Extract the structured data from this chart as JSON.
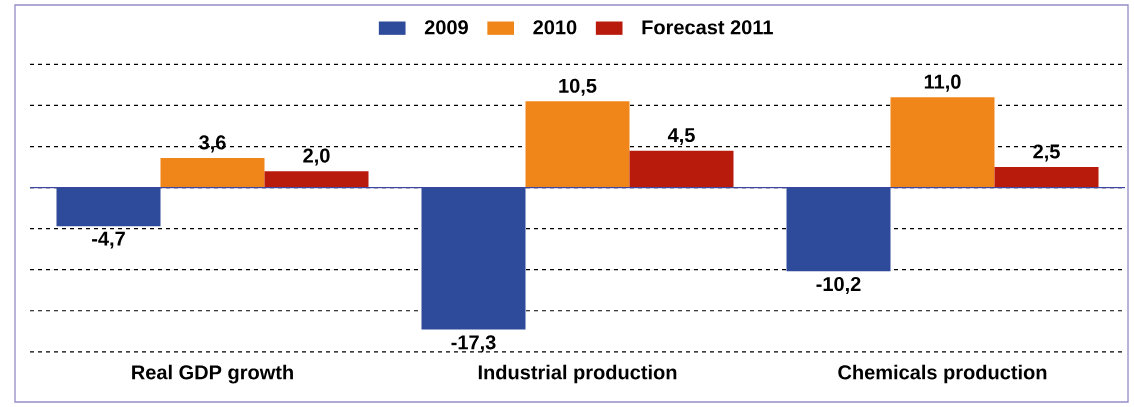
{
  "chart_data": {
    "type": "bar",
    "categories": [
      "Real GDP growth",
      "Industrial production",
      "Chemicals production"
    ],
    "series": [
      {
        "name": "2009",
        "color": "#2e4a9a",
        "values": [
          -4.7,
          -17.3,
          -10.2
        ],
        "value_labels": [
          "-4,7",
          "-17,3",
          "-10,2"
        ]
      },
      {
        "name": "2010",
        "color": "#f0861a",
        "values": [
          3.6,
          10.5,
          11.0
        ],
        "value_labels": [
          "3,6",
          "10,5",
          "11,0"
        ]
      },
      {
        "name": "Forecast 2011",
        "color": "#b81a0c",
        "values": [
          2.0,
          4.5,
          2.5
        ],
        "value_labels": [
          "2,0",
          "4,5",
          "2,5"
        ]
      }
    ],
    "ref_lines": [
      {
        "axis": "y",
        "value": 0,
        "color": "#3c46a0",
        "line_style": "solid"
      }
    ],
    "yticks": [
      {
        "value": -20,
        "label": null
      },
      {
        "value": -15,
        "label": null
      },
      {
        "value": -10,
        "label": null
      },
      {
        "value": -5,
        "label": null
      },
      {
        "value": 0,
        "label": null
      },
      {
        "value": 5,
        "label": null
      },
      {
        "value": 10,
        "label": null
      },
      {
        "value": 15,
        "label": null
      }
    ],
    "grid": "y",
    "legend": "top",
    "tick_labels": "x"
  }
}
